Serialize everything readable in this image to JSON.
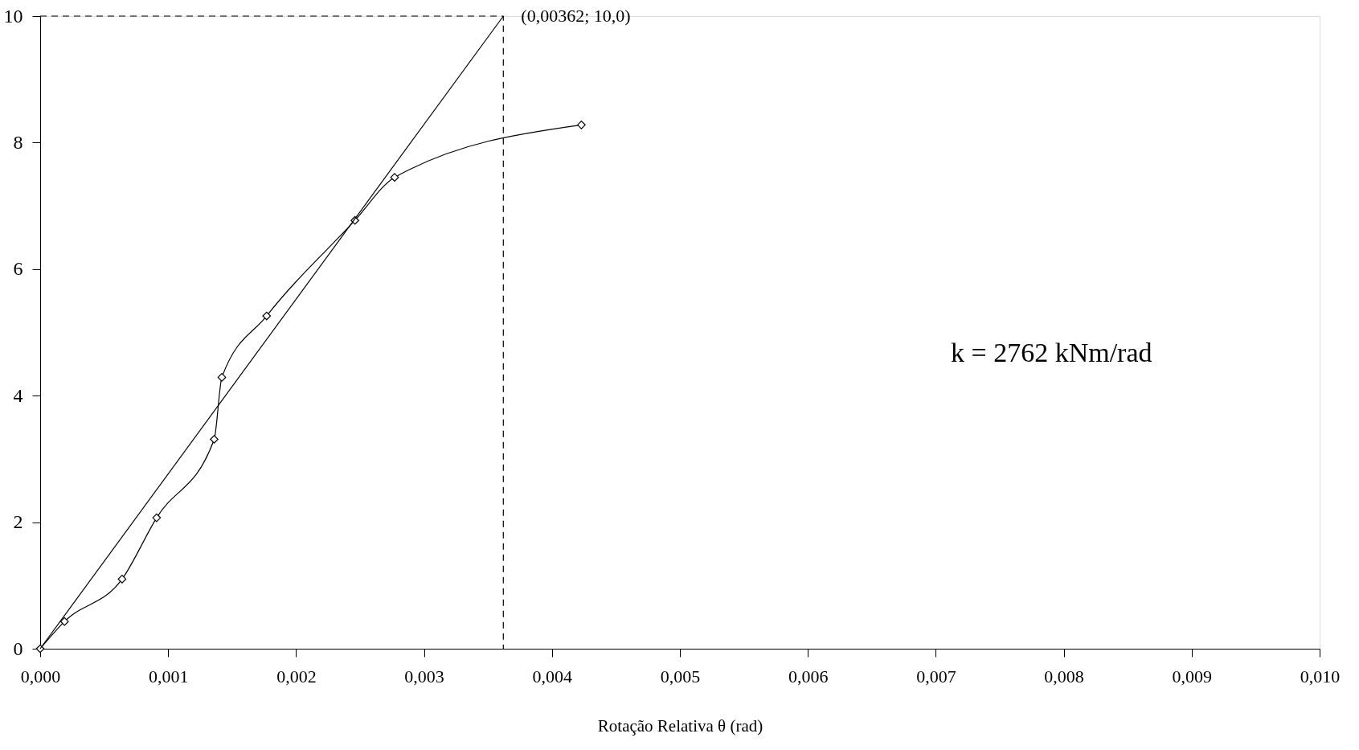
{
  "chart_data": {
    "type": "line",
    "xlabel": "Rotação Relativa θ (rad)",
    "xlim": [
      0,
      0.01
    ],
    "xticks": [
      {
        "value": 0,
        "label": "0,000"
      },
      {
        "value": 0.001,
        "label": "0,001"
      },
      {
        "value": 0.002,
        "label": "0,002"
      },
      {
        "value": 0.003,
        "label": "0,003"
      },
      {
        "value": 0.004,
        "label": "0,004"
      },
      {
        "value": 0.005,
        "label": "0,005"
      },
      {
        "value": 0.006,
        "label": "0,006"
      },
      {
        "value": 0.007,
        "label": "0,007"
      },
      {
        "value": 0.008,
        "label": "0,008"
      },
      {
        "value": 0.009,
        "label": "0,009"
      },
      {
        "value": 0.01,
        "label": "0,010"
      }
    ],
    "ylim": [
      0,
      10
    ],
    "yticks": [
      0,
      2,
      4,
      6,
      8,
      10
    ],
    "grid": false,
    "series": [
      {
        "type": "line",
        "color": "#000000",
        "marker": "diamond",
        "line_style": "solid",
        "x": [
          0,
          0.00019,
          0.00064,
          0.00091,
          0.00136,
          0.00142,
          0.00177,
          0.00246,
          0.00277,
          0.00423
        ],
        "values": [
          0,
          0.43,
          1.1,
          2.07,
          3.31,
          4.29,
          5.26,
          6.77,
          7.45,
          8.28
        ]
      },
      {
        "type": "line",
        "color": "#000000",
        "marker": "none",
        "line_style": "solid",
        "x": [
          0,
          0.00362
        ],
        "values": [
          0,
          10
        ]
      },
      {
        "type": "line",
        "color": "#000000",
        "marker": "none",
        "line_style": "dashed",
        "x": [
          0,
          0.00362,
          0.00362
        ],
        "values": [
          10,
          10,
          0
        ]
      }
    ],
    "annotations": [
      {
        "text": "(0,00362; 10,0)",
        "x": 0.00362,
        "y": 10
      },
      "k = 2762 kNm/rad"
    ]
  }
}
